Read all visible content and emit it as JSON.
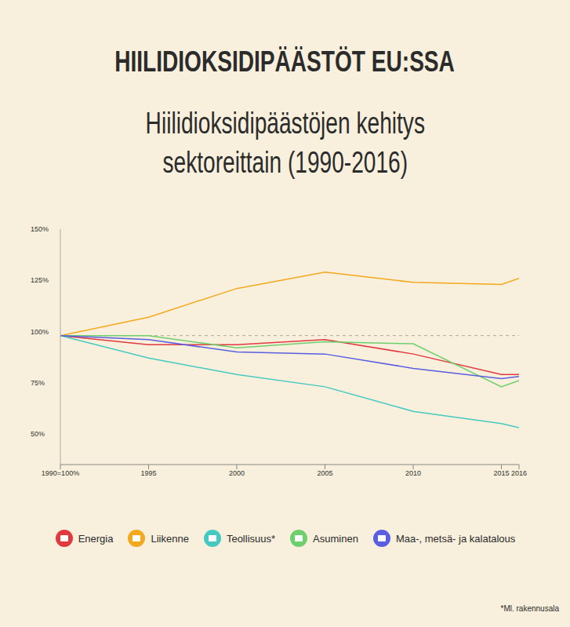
{
  "chart_data": {
    "type": "line",
    "title": "HIILIDIOKSIDIPÄÄSTÖT EU:SSA",
    "subtitle": "Hiilidioksidipäästöjen kehitys\nsektoreittain (1990-2016)",
    "annotation": "*Ml. rakennusala",
    "x": [
      1990,
      1995,
      2000,
      2005,
      2010,
      2015,
      2016
    ],
    "xlim": [
      1990,
      2016
    ],
    "xticks": [
      {
        "value": 1990,
        "label": "1990=100%"
      },
      1995,
      2000,
      2005,
      2010,
      2015,
      2016
    ],
    "ylim": [
      35,
      150
    ],
    "yticks": [
      {
        "value": 50,
        "label": "50%"
      },
      {
        "value": 75,
        "label": "75%"
      },
      {
        "value": 100,
        "label": "100%"
      },
      {
        "value": 125,
        "label": "125%"
      },
      {
        "value": 150,
        "label": "150%"
      }
    ],
    "grid": false,
    "legend": "bottom",
    "series": [
      {
        "name": "Energia",
        "color": "#e0393e",
        "values": [
          98,
          93.6,
          93.6,
          96,
          89,
          79,
          79
        ]
      },
      {
        "name": "Liikenne",
        "color": "#f4a81d",
        "values": [
          98,
          107,
          121,
          129,
          124,
          123,
          126
        ]
      },
      {
        "name": "Teollisuus*",
        "color": "#45c9c1",
        "values": [
          98,
          87,
          79,
          73,
          61,
          55,
          53
        ]
      },
      {
        "name": "Asuminen",
        "color": "#6dcf6d",
        "values": [
          98,
          98,
          92,
          95,
          94,
          73,
          76
        ]
      },
      {
        "name": "Maa-, metsä- ja kalatalous",
        "color": "#5a5ee0",
        "values": [
          98,
          96,
          90,
          89,
          82,
          77,
          78
        ]
      }
    ]
  }
}
